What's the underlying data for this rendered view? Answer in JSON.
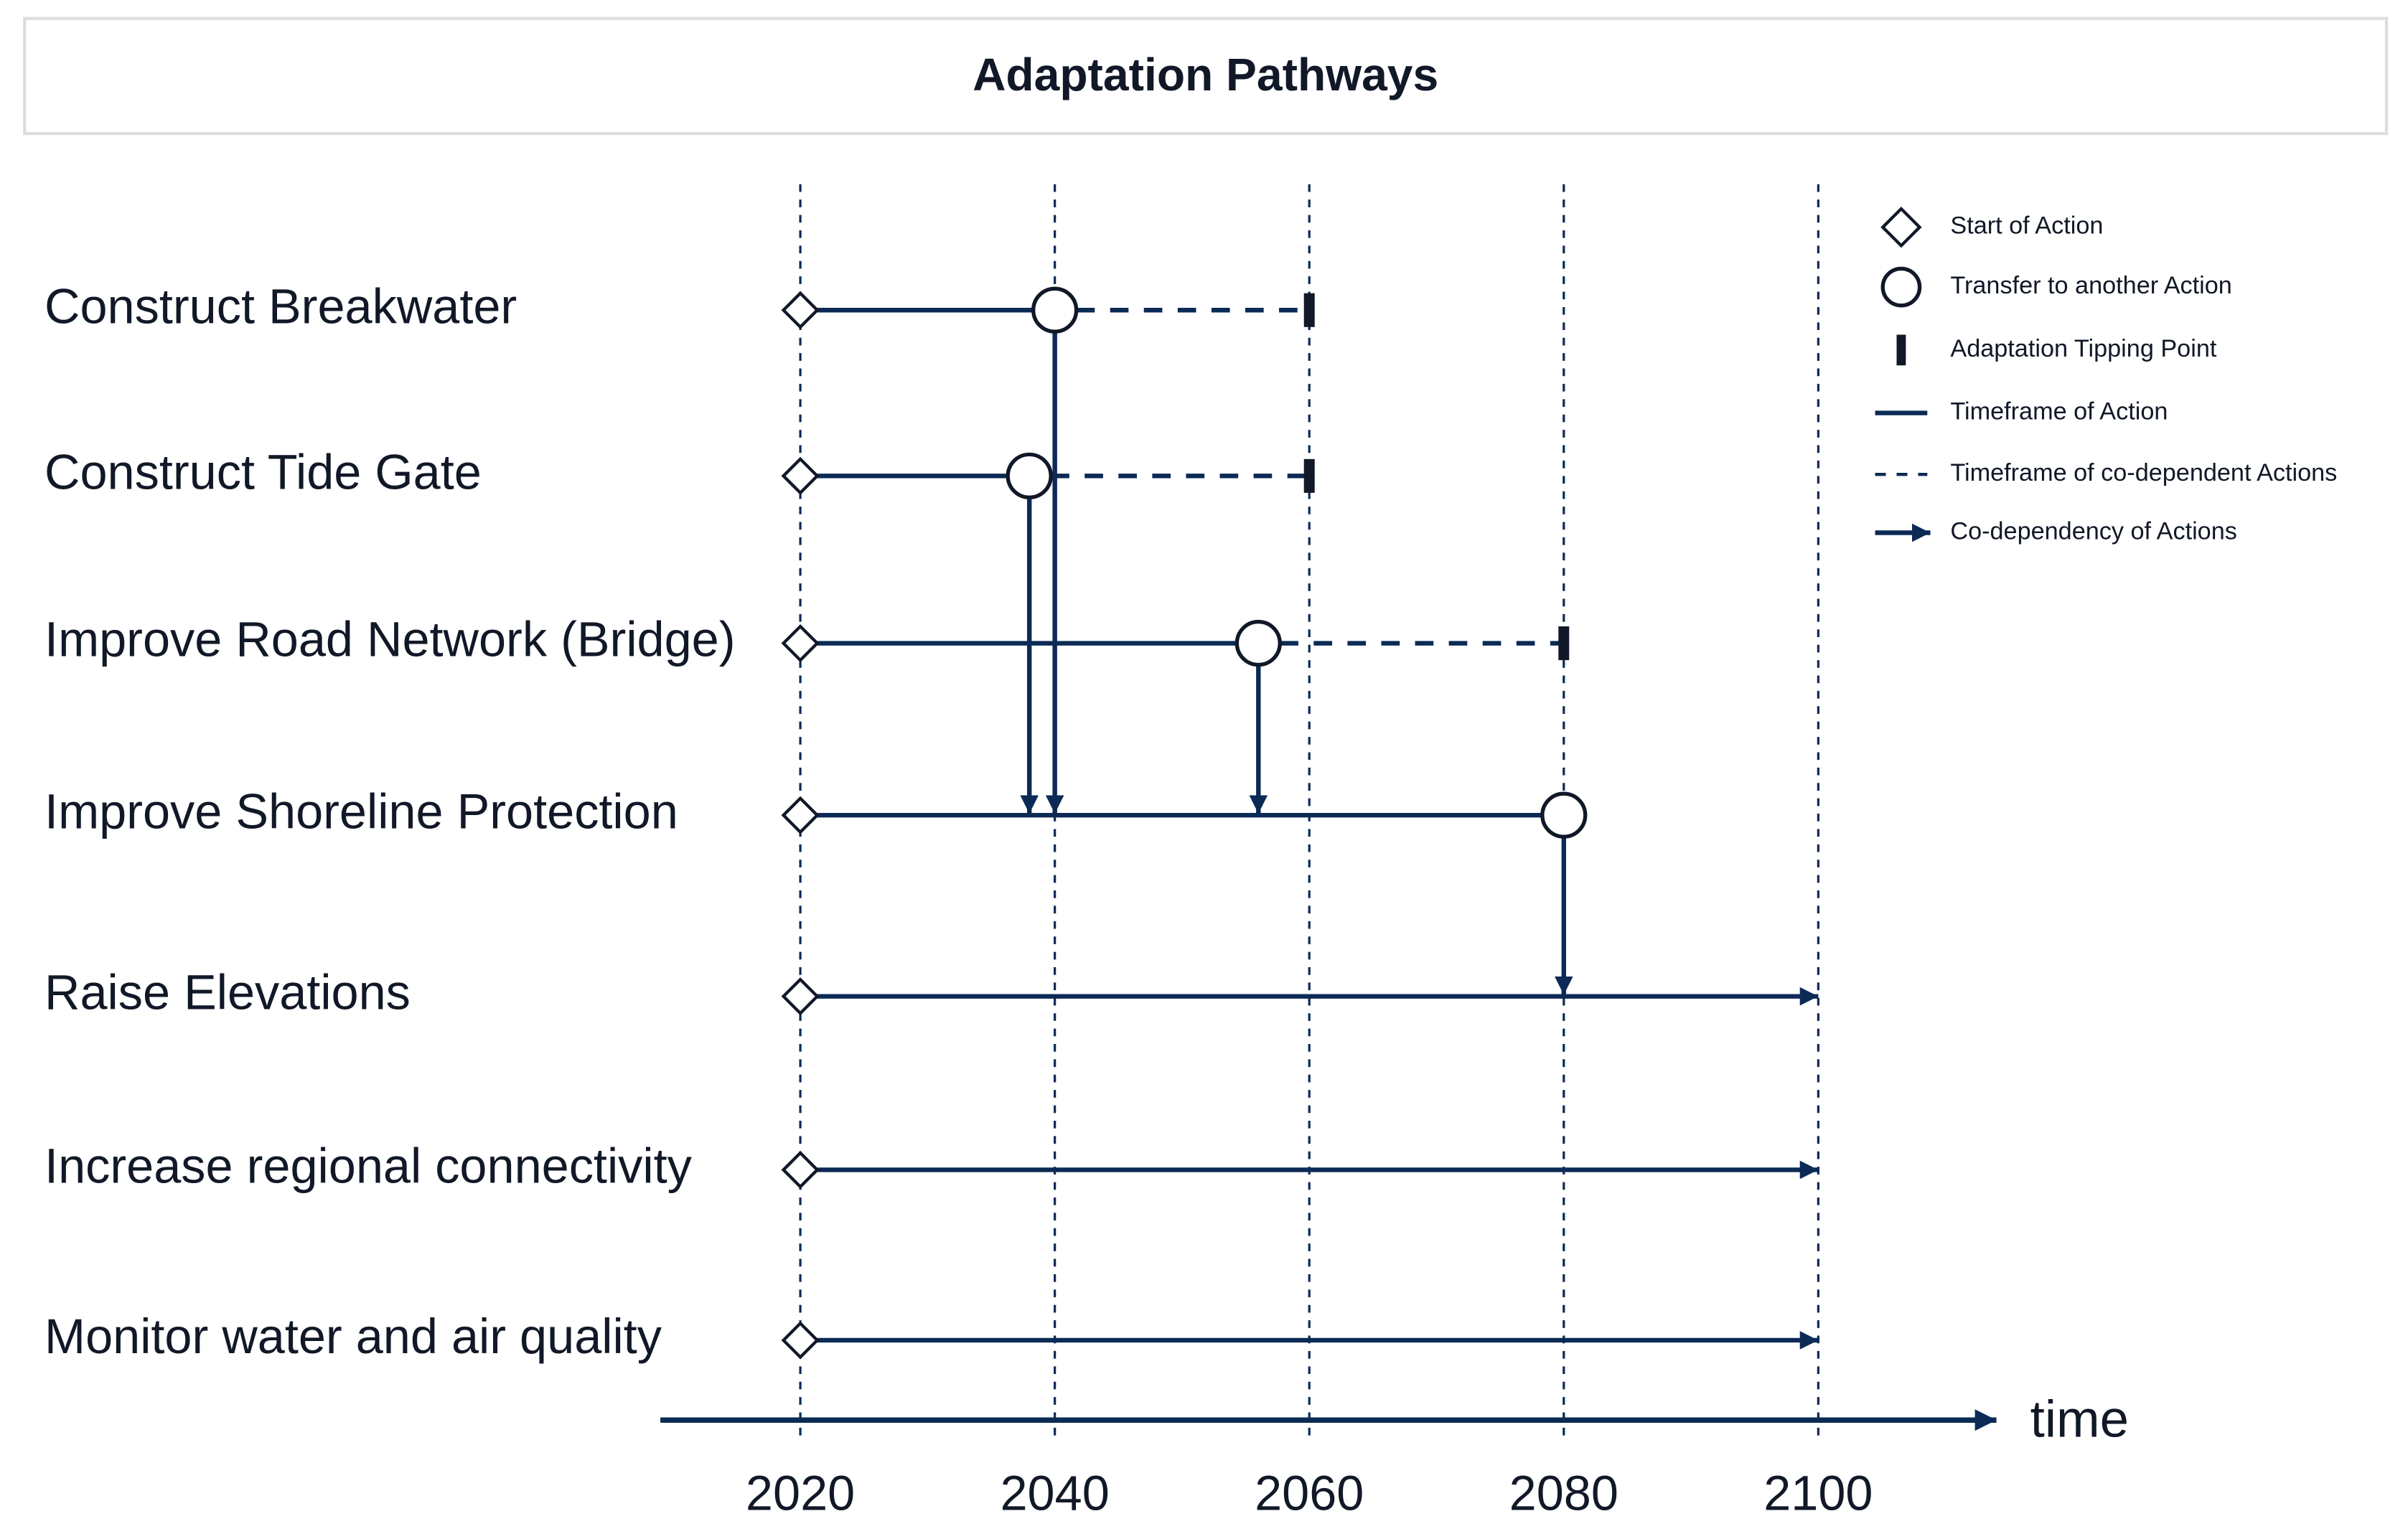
{
  "chart_data": {
    "type": "pathways",
    "title": "Adaptation Pathways",
    "xlabel": "time",
    "xlim": [
      2009,
      2114
    ],
    "xticks": [
      2020,
      2040,
      2060,
      2080,
      2100
    ],
    "grid": true,
    "color": "#0b2a55",
    "rows": [
      {
        "name": "Construct Breakwater",
        "start": 2020,
        "transfer": 2040,
        "tipping_point": 2060,
        "transfer_to": 3
      },
      {
        "name": "Construct Tide Gate",
        "start": 2020,
        "transfer": 2038,
        "tipping_point": 2060,
        "transfer_to": 3
      },
      {
        "name": "Improve Road Network (Bridge)",
        "start": 2020,
        "transfer": 2056,
        "tipping_point": 2080,
        "transfer_to": 3
      },
      {
        "name": "Improve Shoreline Protection",
        "start": 2020,
        "transfer": 2080,
        "transfer_to": 4
      },
      {
        "name": "Raise Elevations",
        "start": 2020,
        "end": 2100
      },
      {
        "name": "Increase regional connectivity",
        "start": 2020,
        "end": 2100
      },
      {
        "name": "Monitor water and air quality",
        "start": 2020,
        "end": 2100
      }
    ],
    "legend": [
      "Start of Action",
      "Transfer to another Action",
      "Adaptation Tipping Point",
      "Timeframe of Action",
      "Timeframe of co-dependent Actions",
      "Co-dependency of Actions"
    ]
  }
}
